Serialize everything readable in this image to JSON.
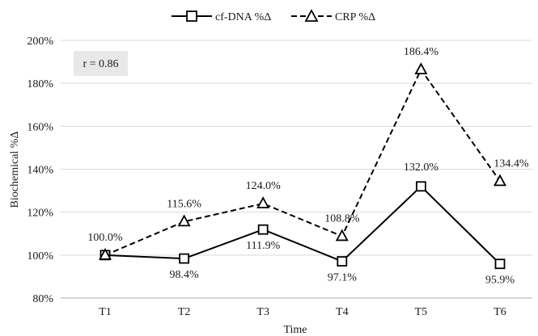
{
  "chart_data": {
    "type": "line",
    "categories": [
      "T1",
      "T2",
      "T3",
      "T4",
      "T5",
      "T6"
    ],
    "series": [
      {
        "name": "cf-DNA %Δ",
        "values": [
          100.0,
          98.4,
          111.9,
          97.1,
          132.0,
          95.9
        ],
        "labels": [
          "100.0%",
          "98.4%",
          "111.9%",
          "97.1%",
          "132.0%",
          "95.9%"
        ],
        "line_style": "solid",
        "marker": "square",
        "color": "#000000"
      },
      {
        "name": "CRP %Δ",
        "values": [
          100.0,
          115.6,
          124.0,
          108.8,
          186.4,
          134.4
        ],
        "labels": [
          "",
          "115.6%",
          "124.0%",
          "108.8%",
          "186.4%",
          "134.4%"
        ],
        "line_style": "dashed",
        "marker": "triangle",
        "color": "#000000"
      }
    ],
    "title": "",
    "xlabel": "Time",
    "ylabel": "Biochemical %Δ",
    "ylim": [
      80,
      200
    ],
    "yticks": [
      80,
      100,
      120,
      140,
      160,
      180,
      200
    ],
    "ytick_labels": [
      "80%",
      "100%",
      "120%",
      "140%",
      "160%",
      "180%",
      "200%"
    ],
    "grid": "horizontal",
    "legend_position": "top",
    "annotation": "r = 0.86"
  }
}
